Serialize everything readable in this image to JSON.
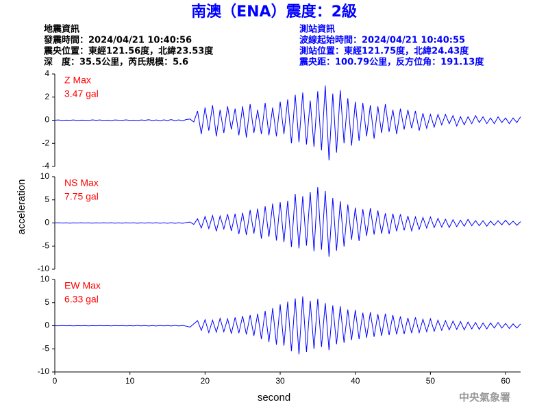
{
  "title": "南澳（ENA）震度：2級",
  "quake_info": [
    "地震資訊",
    "發震時間：2024/04/21 10:40:56",
    "震央位置：東經121.56度，北緯23.53度",
    "深　度：35.5公里，芮氏規模：5.6"
  ],
  "station_info": [
    "測站資訊",
    "波線起始時間：2024/04/21 10:40:55",
    "測站位置：東經121.75度，北緯24.43度",
    "震央距：100.79公里，反方位角：191.13度"
  ],
  "footer": "中央氣象署",
  "chart_data": {
    "type": "line",
    "x_label": "second",
    "y_label": "acceleration",
    "xlim": [
      0,
      62
    ],
    "xticks": [
      0,
      10,
      20,
      30,
      40,
      50,
      60
    ],
    "x": [
      0,
      0.5,
      1,
      1.5,
      2,
      2.5,
      3,
      3.5,
      4,
      4.5,
      5,
      5.5,
      6,
      6.5,
      7,
      7.5,
      8,
      8.5,
      9,
      9.5,
      10,
      10.5,
      11,
      11.5,
      12,
      12.5,
      13,
      13.5,
      14,
      14.5,
      15,
      15.5,
      16,
      16.5,
      17,
      17.5,
      18,
      18.5,
      19,
      19.5,
      20,
      20.5,
      21,
      21.5,
      22,
      22.5,
      23,
      23.5,
      24,
      24.5,
      25,
      25.5,
      26,
      26.5,
      27,
      27.5,
      28,
      28.5,
      29,
      29.5,
      30,
      30.5,
      31,
      31.5,
      32,
      32.5,
      33,
      33.5,
      34,
      34.5,
      35,
      35.5,
      36,
      36.5,
      37,
      37.5,
      38,
      38.5,
      39,
      39.5,
      40,
      40.5,
      41,
      41.5,
      42,
      42.5,
      43,
      43.5,
      44,
      44.5,
      45,
      45.5,
      46,
      46.5,
      47,
      47.5,
      48,
      48.5,
      49,
      49.5,
      50,
      50.5,
      51,
      51.5,
      52,
      52.5,
      53,
      53.5,
      54,
      54.5,
      55,
      55.5,
      56,
      56.5,
      57,
      57.5,
      58,
      58.5,
      59,
      59.5,
      60,
      60.5,
      61,
      61.5,
      62
    ],
    "series": [
      {
        "name": "Z Max",
        "peak_label": "3.47 gal",
        "color": "#0000ff",
        "label_color": "#ff0000",
        "ylim": [
          -4,
          4
        ],
        "yticks": [
          -4,
          -2,
          0,
          2,
          4
        ],
        "values": [
          0,
          0.02,
          -0.02,
          0.01,
          -0.01,
          0.02,
          -0.03,
          0.01,
          0,
          -0.02,
          0.03,
          -0.01,
          0.02,
          -0.02,
          0.01,
          -0.03,
          0.02,
          0,
          -0.01,
          0.03,
          -0.02,
          0.01,
          -0.03,
          0.02,
          -0.01,
          0.04,
          -0.03,
          0.02,
          -0.04,
          0.03,
          -0.02,
          0.05,
          -0.04,
          0.03,
          -0.05,
          0.06,
          0.1,
          -0.15,
          0.8,
          -1.2,
          1.1,
          -0.9,
          1.3,
          -1.4,
          0.9,
          -1.1,
          1.2,
          -0.8,
          1.0,
          -1.3,
          1.2,
          -1.5,
          1.4,
          -1.1,
          0.9,
          -1.2,
          1.5,
          -1.3,
          1.1,
          -1.4,
          1.6,
          -1.2,
          1.8,
          -2.0,
          2.2,
          -1.9,
          2.4,
          -2.1,
          1.7,
          -2.3,
          2.5,
          -2.6,
          3.0,
          -3.47,
          2.3,
          -2.8,
          2.6,
          -2.0,
          1.9,
          -2.2,
          1.6,
          -1.8,
          1.5,
          -1.4,
          1.3,
          -1.6,
          1.2,
          -1.1,
          1.4,
          -1.0,
          0.9,
          -1.2,
          1.0,
          -0.8,
          0.9,
          -0.7,
          0.8,
          -0.9,
          0.6,
          -0.7,
          0.5,
          -0.6,
          0.5,
          -0.4,
          0.5,
          -0.3,
          0.4,
          -0.5,
          0.3,
          -0.4,
          0.3,
          -0.3,
          0.4,
          -0.2,
          0.3,
          -0.3,
          0.2,
          -0.3,
          0.3,
          -0.2,
          0.2,
          -0.3,
          0.2,
          -0.2,
          0.3
        ]
      },
      {
        "name": "NS Max",
        "peak_label": "7.75 gal",
        "color": "#0000ff",
        "label_color": "#ff0000",
        "ylim": [
          -10,
          10
        ],
        "yticks": [
          -10,
          -5,
          0,
          5,
          10
        ],
        "values": [
          0,
          0.03,
          -0.02,
          0.02,
          -0.03,
          0.01,
          -0.02,
          0.03,
          -0.01,
          0.02,
          -0.03,
          0.02,
          -0.01,
          0.03,
          -0.02,
          0.04,
          -0.03,
          0.02,
          -0.04,
          0.03,
          -0.02,
          0.04,
          -0.05,
          0.03,
          -0.04,
          0.05,
          -0.03,
          0.06,
          -0.05,
          0.04,
          -0.06,
          0.05,
          -0.07,
          0.06,
          -0.08,
          0.1,
          0.2,
          -0.3,
          0.9,
          -1.1,
          1.4,
          -1.2,
          1.6,
          -1.8,
          1.5,
          -1.3,
          1.9,
          -1.7,
          2.0,
          -2.4,
          2.2,
          -2.6,
          2.8,
          -2.3,
          3.1,
          -3.4,
          3.6,
          -3.0,
          4.2,
          -3.8,
          4.5,
          -4.1,
          4.8,
          -5.2,
          6.3,
          -5.5,
          5.8,
          -4.9,
          6.7,
          -6.1,
          7.75,
          -5.8,
          6.9,
          -7.3,
          5.4,
          -6.0,
          4.7,
          -5.1,
          4.0,
          -3.6,
          3.3,
          -3.9,
          3.0,
          -2.8,
          3.2,
          -2.5,
          2.7,
          -2.3,
          2.1,
          -2.4,
          2.0,
          -1.8,
          1.9,
          -1.6,
          1.5,
          -1.7,
          1.3,
          -1.4,
          1.2,
          -1.1,
          1.3,
          -1.0,
          1.0,
          -0.9,
          0.8,
          -1.0,
          0.7,
          -0.8,
          0.6,
          -0.7,
          0.8,
          -0.6,
          0.5,
          -0.6,
          0.5,
          -0.7,
          0.4,
          -0.5,
          0.5,
          -0.4,
          0.6,
          -0.4,
          0.4,
          -0.5,
          0.3
        ]
      },
      {
        "name": "EW Max",
        "peak_label": "6.33 gal",
        "color": "#0000ff",
        "label_color": "#ff0000",
        "ylim": [
          -10,
          10
        ],
        "yticks": [
          -10,
          -5,
          0,
          5,
          10
        ],
        "values": [
          0,
          -0.02,
          0.03,
          -0.01,
          0.02,
          -0.03,
          0.02,
          -0.02,
          0.01,
          -0.03,
          0.02,
          -0.02,
          0.03,
          -0.01,
          0.02,
          -0.04,
          0.03,
          -0.02,
          0.04,
          -0.03,
          0.02,
          -0.04,
          0.05,
          -0.03,
          0.04,
          -0.05,
          0.03,
          -0.06,
          0.05,
          -0.04,
          0.06,
          -0.05,
          0.07,
          -0.06,
          0.08,
          -0.1,
          -0.3,
          0.4,
          1.1,
          -1.0,
          1.3,
          -1.5,
          1.2,
          -1.4,
          1.6,
          -1.3,
          1.5,
          -1.7,
          1.8,
          -1.6,
          2.1,
          -1.9,
          2.3,
          -2.2,
          2.6,
          -2.9,
          3.2,
          -3.5,
          3.8,
          -4.1,
          4.6,
          -4.3,
          5.2,
          -5.5,
          5.9,
          -6.2,
          6.33,
          -5.7,
          5.4,
          -5.0,
          5.8,
          -4.6,
          4.9,
          -5.3,
          4.4,
          -4.0,
          4.2,
          -3.7,
          3.5,
          -3.1,
          3.4,
          -2.9,
          2.8,
          -2.6,
          2.9,
          -2.4,
          2.5,
          -2.2,
          2.6,
          -2.0,
          2.3,
          -1.9,
          2.0,
          -1.8,
          1.7,
          -1.6,
          1.8,
          -1.5,
          1.4,
          -1.3,
          1.5,
          -1.2,
          1.2,
          -1.0,
          1.1,
          -0.9,
          1.0,
          -0.8,
          0.9,
          -0.9,
          0.8,
          -0.7,
          0.7,
          -0.8,
          0.6,
          -0.7,
          0.6,
          -0.5,
          0.7,
          -0.5,
          0.5,
          -0.6,
          0.4,
          -0.5,
          0.4
        ]
      }
    ]
  }
}
